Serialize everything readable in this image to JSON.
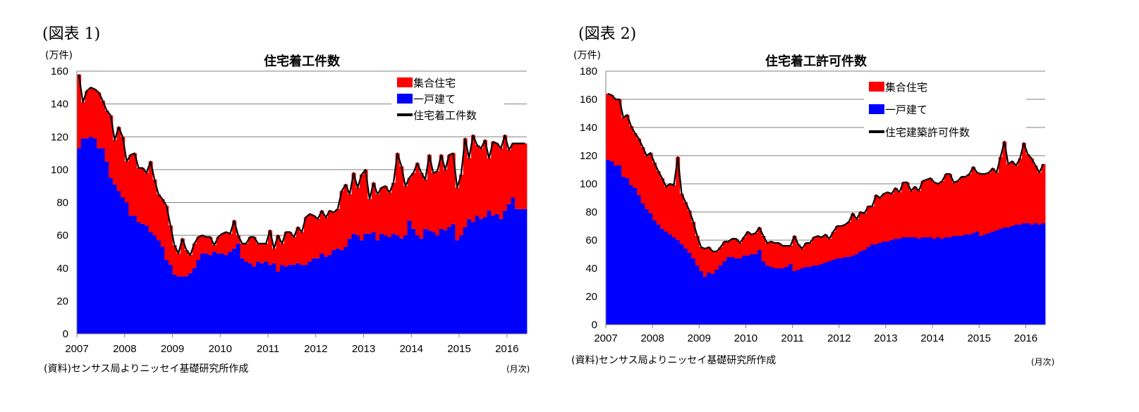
{
  "figures": [
    {
      "label": "(図表 1)",
      "unit": "(万件)",
      "source": "(資料)センサス局よりニッセイ基礎研究所作成",
      "frequency": "(月次)"
    },
    {
      "label": "(図表 2)",
      "unit": "(万件)",
      "source": "(資料)センサス局よりニッセイ基礎研究所作成",
      "frequency": "(月次)"
    }
  ],
  "colors": {
    "multi_family": "#ff0000",
    "single_family": "#0000ff",
    "total_line": "#000000",
    "grid": "#808080"
  },
  "chart_data": [
    {
      "type": "bar",
      "stacked": true,
      "title": "住宅着工件数",
      "ylabel": "(万件)",
      "xlabel": "(月次)",
      "ylim": [
        0,
        160
      ],
      "yticks": [
        0,
        20,
        40,
        60,
        80,
        100,
        120,
        140,
        160
      ],
      "xticks": [
        "2007",
        "2008",
        "2009",
        "2010",
        "2011",
        "2012",
        "2013",
        "2014",
        "2015",
        "2016"
      ],
      "grid": true,
      "legend": "top-right",
      "x_range": [
        "2007-01",
        "2016-05"
      ],
      "series": [
        {
          "name": "一戸建て",
          "kind": "bar",
          "values": [
            113,
            119,
            119,
            120,
            119,
            113,
            113,
            105,
            95,
            91,
            87,
            83,
            80,
            72,
            72,
            68,
            67,
            66,
            62,
            60,
            57,
            53,
            45,
            42,
            36,
            35,
            35,
            35,
            37,
            40,
            45,
            49,
            49,
            48,
            50,
            49,
            49,
            48,
            50,
            52,
            55,
            46,
            44,
            43,
            41,
            44,
            43,
            44,
            42,
            43,
            38,
            42,
            41,
            42,
            42,
            43,
            42,
            42,
            44,
            46,
            46,
            49,
            47,
            48,
            51,
            52,
            51,
            53,
            58,
            61,
            60,
            57,
            61,
            61,
            62,
            57,
            61,
            60,
            59,
            61,
            60,
            58,
            60,
            69,
            64,
            60,
            58,
            64,
            63,
            62,
            60,
            64,
            63,
            65,
            67,
            57,
            60,
            65,
            70,
            68,
            72,
            70,
            71,
            75,
            72,
            73,
            70,
            75,
            79,
            83,
            76,
            76,
            76
          ]
        },
        {
          "name": "集合住宅",
          "kind": "bar",
          "values": [
            45,
            22,
            29,
            30,
            30,
            34,
            29,
            31,
            38,
            27,
            39,
            37,
            25,
            37,
            38,
            33,
            34,
            32,
            43,
            34,
            28,
            29,
            33,
            24,
            18,
            14,
            23,
            16,
            11,
            15,
            14,
            11,
            10,
            11,
            4,
            10,
            12,
            14,
            11,
            17,
            5,
            9,
            11,
            16,
            18,
            11,
            12,
            11,
            21,
            9,
            22,
            13,
            21,
            20,
            17,
            22,
            20,
            29,
            29,
            26,
            24,
            26,
            24,
            27,
            23,
            24,
            36,
            38,
            27,
            37,
            29,
            40,
            39,
            21,
            30,
            28,
            28,
            30,
            27,
            31,
            50,
            44,
            30,
            26,
            34,
            44,
            40,
            30,
            46,
            36,
            39,
            45,
            37,
            44,
            43,
            32,
            37,
            54,
            37,
            53,
            43,
            43,
            47,
            32,
            45,
            43,
            43,
            46,
            33,
            33,
            40,
            40,
            40
          ]
        },
        {
          "name": "住宅着工件数",
          "kind": "line",
          "values": [
            158,
            141,
            148,
            150,
            149,
            147,
            142,
            136,
            133,
            118,
            126,
            120,
            105,
            109,
            110,
            101,
            101,
            98,
            105,
            94,
            85,
            82,
            78,
            66,
            54,
            49,
            58,
            51,
            48,
            55,
            59,
            60,
            59,
            59,
            54,
            59,
            61,
            62,
            61,
            69,
            60,
            55,
            55,
            59,
            59,
            55,
            55,
            55,
            63,
            52,
            60,
            55,
            62,
            62,
            59,
            65,
            62,
            71,
            73,
            72,
            70,
            75,
            71,
            75,
            74,
            76,
            87,
            91,
            85,
            98,
            89,
            97,
            100,
            82,
            92,
            85,
            89,
            90,
            86,
            92,
            110,
            102,
            90,
            95,
            98,
            104,
            98,
            94,
            109,
            98,
            99,
            109,
            100,
            109,
            110,
            89,
            97,
            119,
            107,
            121,
            115,
            113,
            118,
            107,
            117,
            116,
            113,
            121,
            112,
            116,
            116,
            116,
            116
          ]
        }
      ]
    },
    {
      "type": "bar",
      "stacked": true,
      "title": "住宅着工許可件数",
      "ylabel": "(万件)",
      "xlabel": "(月次)",
      "ylim": [
        0,
        180
      ],
      "yticks": [
        0,
        20,
        40,
        60,
        80,
        100,
        120,
        140,
        160,
        180
      ],
      "xticks": [
        "2007",
        "2008",
        "2009",
        "2010",
        "2011",
        "2012",
        "2013",
        "2014",
        "2015",
        "2016"
      ],
      "grid": true,
      "legend": "top-right",
      "x_range": [
        "2007-01",
        "2016-05"
      ],
      "series": [
        {
          "name": "一戸建て",
          "kind": "bar",
          "values": [
            117,
            116,
            113,
            113,
            105,
            104,
            99,
            97,
            92,
            86,
            82,
            79,
            74,
            71,
            68,
            66,
            64,
            62,
            60,
            57,
            54,
            51,
            47,
            42,
            38,
            34,
            37,
            36,
            39,
            42,
            45,
            48,
            48,
            47,
            47,
            49,
            49,
            50,
            50,
            53,
            45,
            42,
            41,
            40,
            40,
            40,
            41,
            43,
            38,
            39,
            40,
            41,
            41,
            42,
            42,
            43,
            44,
            45,
            46,
            47,
            47,
            48,
            48,
            49,
            50,
            52,
            53,
            55,
            57,
            57,
            58,
            59,
            59,
            60,
            61,
            61,
            62,
            62,
            62,
            62,
            61,
            62,
            62,
            62,
            61,
            62,
            61,
            62,
            62,
            63,
            63,
            63,
            64,
            64,
            65,
            66,
            63,
            64,
            65,
            66,
            67,
            68,
            69,
            69,
            70,
            71,
            71,
            72,
            72,
            71,
            72,
            71,
            72
          ]
        },
        {
          "name": "集合住宅",
          "kind": "bar",
          "values": [
            47,
            47,
            47,
            47,
            42,
            45,
            42,
            39,
            40,
            40,
            38,
            43,
            41,
            38,
            36,
            32,
            36,
            37,
            59,
            36,
            33,
            30,
            26,
            21,
            17,
            20,
            18,
            16,
            13,
            13,
            14,
            11,
            13,
            14,
            11,
            13,
            17,
            14,
            15,
            16,
            18,
            16,
            18,
            18,
            18,
            16,
            15,
            13,
            25,
            18,
            14,
            17,
            17,
            20,
            21,
            19,
            20,
            16,
            20,
            23,
            23,
            23,
            25,
            30,
            25,
            28,
            26,
            29,
            27,
            35,
            32,
            34,
            35,
            33,
            36,
            33,
            39,
            39,
            33,
            36,
            34,
            40,
            41,
            42,
            40,
            38,
            41,
            45,
            45,
            38,
            39,
            42,
            41,
            43,
            47,
            42,
            44,
            43,
            43,
            45,
            41,
            51,
            61,
            45,
            46,
            42,
            47,
            57,
            49,
            47,
            41,
            37,
            42
          ]
        },
        {
          "name": "住宅建築許可件数",
          "kind": "line",
          "values": [
            164,
            163,
            160,
            160,
            147,
            149,
            141,
            136,
            132,
            126,
            120,
            122,
            115,
            109,
            104,
            98,
            100,
            99,
            119,
            93,
            87,
            81,
            73,
            63,
            55,
            54,
            55,
            52,
            52,
            55,
            59,
            59,
            61,
            61,
            58,
            62,
            66,
            64,
            65,
            69,
            63,
            58,
            59,
            58,
            58,
            56,
            56,
            56,
            63,
            57,
            54,
            58,
            58,
            62,
            63,
            62,
            64,
            61,
            66,
            70,
            70,
            71,
            73,
            79,
            75,
            80,
            79,
            84,
            84,
            92,
            90,
            93,
            94,
            93,
            97,
            94,
            101,
            101,
            95,
            98,
            95,
            102,
            103,
            104,
            101,
            100,
            102,
            107,
            107,
            101,
            102,
            105,
            105,
            107,
            112,
            108,
            107,
            107,
            108,
            111,
            108,
            119,
            130,
            114,
            116,
            113,
            118,
            129,
            121,
            118,
            113,
            108,
            114
          ]
        }
      ]
    }
  ]
}
